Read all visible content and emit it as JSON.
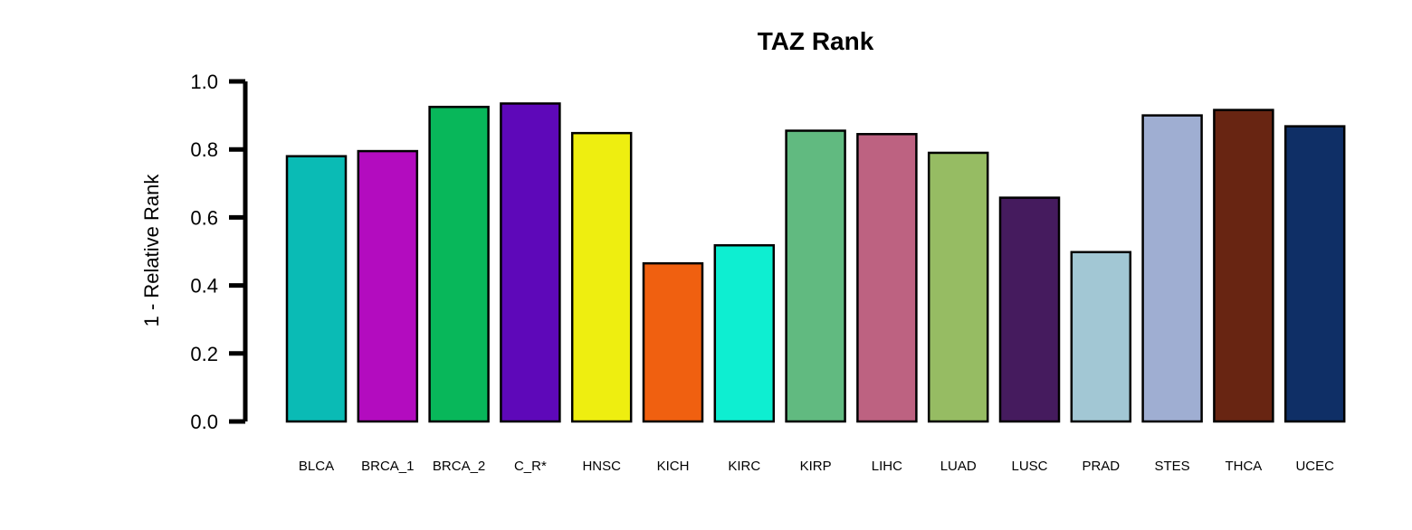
{
  "chart_data": {
    "type": "bar",
    "title": "TAZ Rank",
    "xlabel": "",
    "ylabel": "1 - Relative Rank",
    "ylim": [
      0,
      1.0
    ],
    "yticks": [
      "0.0",
      "0.2",
      "0.4",
      "0.6",
      "0.8",
      "1.0"
    ],
    "grid": false,
    "legend": "none",
    "categories": [
      "BLCA",
      "BRCA_1",
      "BRCA_2",
      "C_R*",
      "HNSC",
      "KICH",
      "KIRC",
      "KIRP",
      "LIHC",
      "LUAD",
      "LUSC",
      "PRAD",
      "STES",
      "THCA",
      "UCEC"
    ],
    "values": [
      0.78,
      0.795,
      0.925,
      0.935,
      0.848,
      0.465,
      0.518,
      0.855,
      0.845,
      0.79,
      0.658,
      0.498,
      0.9,
      0.916,
      0.868
    ],
    "colors": [
      "#0ABBB5",
      "#B30CBF",
      "#08B75A",
      "#5E08B9",
      "#EEEE10",
      "#F06010",
      "#0EEED1",
      "#61BA80",
      "#BD6281",
      "#96BC63",
      "#451B5E",
      "#A2C7D4",
      "#9FAED2",
      "#682512",
      "#0F2F66"
    ]
  }
}
